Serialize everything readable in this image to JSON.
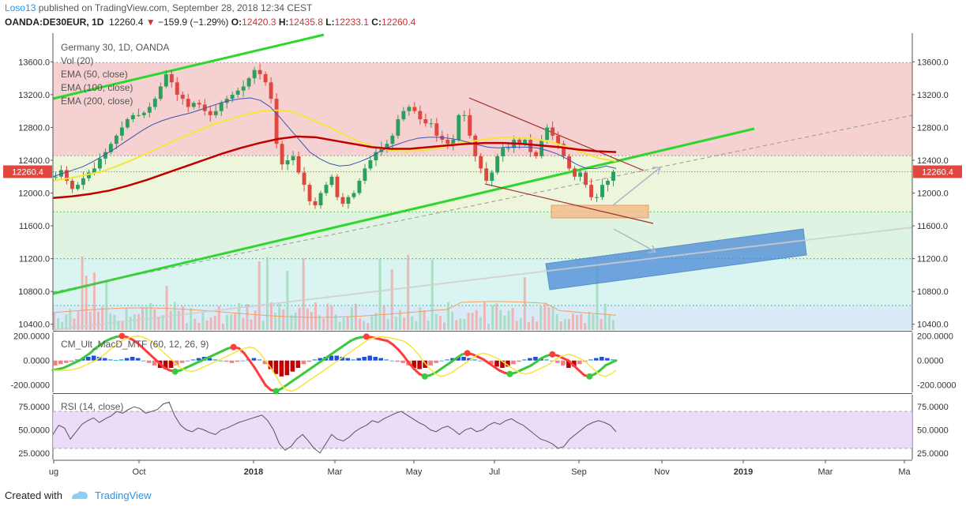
{
  "header": {
    "author": "Loso13",
    "published": "published on TradingView.com, September 28, 2018 12:34 CEST",
    "symbol": "OANDA:DE30EUR, 1D",
    "last": "12260.4",
    "change": "−159.9 (−1.29%)",
    "o_label": "O:",
    "o": "12420.3",
    "h_label": "H:",
    "h": "12435.8",
    "l_label": "L:",
    "l": "12233.1",
    "c_label": "C:",
    "c": "12260.4"
  },
  "main_legend": {
    "title": "Germany 30, 1D, OANDA",
    "vol": "Vol (20)",
    "ema50": "EMA (50, close)",
    "ema100": "EMA (100, close)",
    "ema200": "EMA (200, close)"
  },
  "macd_legend": "CM_Ult_MacD_MTF (60, 12, 26, 9)",
  "rsi_legend": "RSI (14, close)",
  "footer": {
    "created": "Created with",
    "brand": "TradingView"
  },
  "colors": {
    "trend_green": "#2ed62e",
    "channel_brown": "#a0302b",
    "ema50": "#3f51b5",
    "ema100": "#f5e53b",
    "ema200": "#c00000",
    "up_candle": "#2e9e5e",
    "down_candle": "#e0473e",
    "box_blue": "#4a8ad8",
    "box_orange": "#f6b98a",
    "rsi_band": "#e6d3f7"
  },
  "chart_data": [
    {
      "type": "candlestick",
      "title": "Germany 30, 1D, OANDA",
      "price_labels": [
        "13600.0",
        "13200.0",
        "12800.0",
        "12400.0",
        "12000.0",
        "11600.0",
        "11200.0",
        "10800.0",
        "10400.0"
      ],
      "price_ticks": [
        13600,
        13200,
        12800,
        12400,
        12000,
        11600,
        11200,
        10800,
        10400
      ],
      "last_price": 12260.4,
      "last_label": "12260.4",
      "ylim": [
        10330,
        13950
      ],
      "x_labels": [
        "ug",
        "Oct",
        "2018",
        "Mar",
        "May",
        "Jul",
        "Sep",
        "Nov",
        "2019",
        "Mar",
        "Ma"
      ],
      "x_ticks": [
        68,
        176,
        321,
        424,
        524,
        626,
        733,
        838,
        941,
        1045,
        1145
      ],
      "zones": [
        {
          "from": 12455,
          "to": 13590,
          "color": "#f5c9c9"
        },
        {
          "from": 11770,
          "to": 12455,
          "color": "#eaf5d3"
        },
        {
          "from": 11200,
          "to": 11770,
          "color": "#d8f1dc"
        },
        {
          "from": 10630,
          "to": 11200,
          "color": "#d3f3ee"
        },
        {
          "from": 10330,
          "to": 10630,
          "color": "#d4e8f7"
        }
      ],
      "dotted_levels": [
        {
          "price": 13590,
          "color": "#999999"
        },
        {
          "price": 12455,
          "color": "#999999"
        },
        {
          "price": 11770,
          "color": "#58c85a"
        },
        {
          "price": 11200,
          "color": "#3cb371"
        },
        {
          "price": 10630,
          "color": "#40b8a8"
        }
      ],
      "close_series": [
        12200,
        12280,
        12150,
        12050,
        12100,
        12180,
        12250,
        12300,
        12420,
        12500,
        12600,
        12700,
        12800,
        12900,
        12950,
        12950,
        12980,
        13050,
        13150,
        13300,
        13450,
        13350,
        13200,
        13150,
        13050,
        13100,
        13080,
        13000,
        12950,
        13000,
        13100,
        13150,
        13200,
        13250,
        13300,
        13400,
        13500,
        13450,
        13350,
        13150,
        12600,
        12350,
        12400,
        12450,
        12250,
        12100,
        11900,
        11850,
        12000,
        12100,
        12200,
        11950,
        11870,
        11950,
        12000,
        12150,
        12300,
        12400,
        12500,
        12550,
        12600,
        12700,
        12900,
        13000,
        13050,
        13000,
        12900,
        12850,
        12850,
        12700,
        12650,
        12600,
        12650,
        12950,
        12950,
        12700,
        12450,
        12300,
        12150,
        12250,
        12450,
        12550,
        12550,
        12650,
        12600,
        12650,
        12500,
        12450,
        12650,
        12800,
        12700,
        12600,
        12450,
        12300,
        12200,
        12250,
        12100,
        11950,
        11950,
        12100,
        12150,
        12260
      ],
      "ema50": [
        12200,
        12240,
        12280,
        12320,
        12380,
        12450,
        12520,
        12600,
        12680,
        12760,
        12830,
        12880,
        12920,
        12950,
        12980,
        13020,
        13060,
        13100,
        13130,
        13150,
        13160,
        13130,
        13050,
        12920,
        12780,
        12640,
        12500,
        12420,
        12360,
        12330,
        12340,
        12380,
        12430,
        12500,
        12560,
        12600,
        12640,
        12670,
        12680,
        12680,
        12670,
        12650,
        12620,
        12590,
        12560,
        12550,
        12560,
        12560,
        12560,
        12550,
        12520,
        12480,
        12420,
        12350,
        12300,
        12300,
        12330,
        12300
      ],
      "ema100": [
        12150,
        12180,
        12220,
        12260,
        12330,
        12410,
        12500,
        12590,
        12680,
        12760,
        12840,
        12900,
        12960,
        13000,
        13010,
        12990,
        12900,
        12820,
        12720,
        12630,
        12560,
        12520,
        12510,
        12520,
        12550,
        12600,
        12630,
        12660,
        12680,
        12680,
        12660,
        12620,
        12560,
        12490,
        12420,
        12390
      ],
      "ema200": [
        11940,
        11960,
        11990,
        12030,
        12090,
        12160,
        12240,
        12320,
        12400,
        12480,
        12550,
        12610,
        12660,
        12690,
        12680,
        12640,
        12600,
        12560,
        12540,
        12540,
        12560,
        12580,
        12600,
        12610,
        12610,
        12600,
        12580,
        12560,
        12530,
        12510,
        12500
      ]
    },
    {
      "type": "bar",
      "title": "CM_Ult_MacD_MTF (60, 12, 26, 9)",
      "y_labels": [
        "200.0000",
        "0.0000",
        "-200.0000"
      ],
      "y_ticks": [
        200,
        0,
        -200
      ],
      "ylim": [
        -260,
        230
      ],
      "macd": [
        -80,
        -70,
        -60,
        -40,
        -20,
        0,
        30,
        60,
        100,
        130,
        160,
        180,
        195,
        200,
        190,
        170,
        140,
        100,
        60,
        20,
        -20,
        -60,
        -80,
        -90,
        -80,
        -60,
        -40,
        -20,
        0,
        20,
        40,
        60,
        80,
        100,
        110,
        100,
        60,
        0,
        -60,
        -130,
        -200,
        -240,
        -250,
        -230,
        -200,
        -170,
        -140,
        -110,
        -80,
        -50,
        -20,
        10,
        40,
        70,
        100,
        130,
        160,
        180,
        190,
        195,
        190,
        180,
        170,
        160,
        130,
        90,
        40,
        -20,
        -70,
        -110,
        -130,
        -120,
        -100,
        -70,
        -40,
        -10,
        20,
        50,
        60,
        50,
        30,
        10,
        -20,
        -50,
        -80,
        -100,
        -110,
        -100,
        -80,
        -60,
        -40,
        -10,
        20,
        40,
        50,
        40,
        20,
        0,
        -40,
        -80,
        -120,
        -130,
        -110,
        -80,
        -40,
        -20,
        0
      ],
      "histogram": [
        -40,
        -30,
        -20,
        -10,
        10,
        20,
        30,
        40,
        30,
        20,
        10,
        5,
        10,
        20,
        30,
        20,
        0,
        -20,
        -40,
        -60,
        -70,
        -60,
        -40,
        -20,
        0,
        10,
        20,
        30,
        20,
        10,
        0,
        -10,
        -20,
        -10,
        0,
        10,
        20,
        10,
        -30,
        -70,
        -110,
        -130,
        -120,
        -90,
        -60,
        -30,
        -10,
        10,
        20,
        30,
        40,
        40,
        30,
        20,
        10,
        20,
        30,
        40,
        30,
        20,
        10,
        0,
        -10,
        -20,
        -40,
        -60,
        -70,
        -60,
        -40,
        -20,
        0,
        10,
        20,
        30,
        30,
        20,
        10,
        0,
        -10,
        -30,
        -50,
        -60,
        -50,
        -30,
        -10,
        10,
        20,
        30,
        20,
        10,
        0,
        -20,
        -40,
        -60,
        -50,
        -30,
        -10,
        10,
        20,
        30,
        20,
        10
      ]
    },
    {
      "type": "line",
      "title": "RSI (14, close)",
      "y_labels": [
        "75.0000",
        "50.0000",
        "25.0000"
      ],
      "y_ticks": [
        75,
        50,
        25
      ],
      "ylim": [
        18,
        88
      ],
      "band": [
        30,
        70
      ],
      "values": [
        45,
        55,
        52,
        40,
        48,
        56,
        60,
        63,
        58,
        62,
        65,
        70,
        68,
        72,
        75,
        73,
        68,
        70,
        72,
        78,
        80,
        65,
        55,
        50,
        48,
        52,
        50,
        47,
        45,
        50,
        52,
        55,
        58,
        60,
        62,
        64,
        66,
        60,
        50,
        35,
        28,
        32,
        40,
        45,
        38,
        30,
        25,
        35,
        45,
        40,
        38,
        42,
        48,
        52,
        55,
        60,
        58,
        62,
        65,
        68,
        70,
        66,
        62,
        58,
        55,
        50,
        48,
        52,
        54,
        50,
        45,
        50,
        52,
        48,
        50,
        55,
        58,
        56,
        60,
        62,
        58,
        55,
        50,
        45,
        40,
        38,
        35,
        30,
        32,
        40,
        45,
        50,
        55,
        58,
        60,
        58,
        55,
        48
      ]
    }
  ]
}
